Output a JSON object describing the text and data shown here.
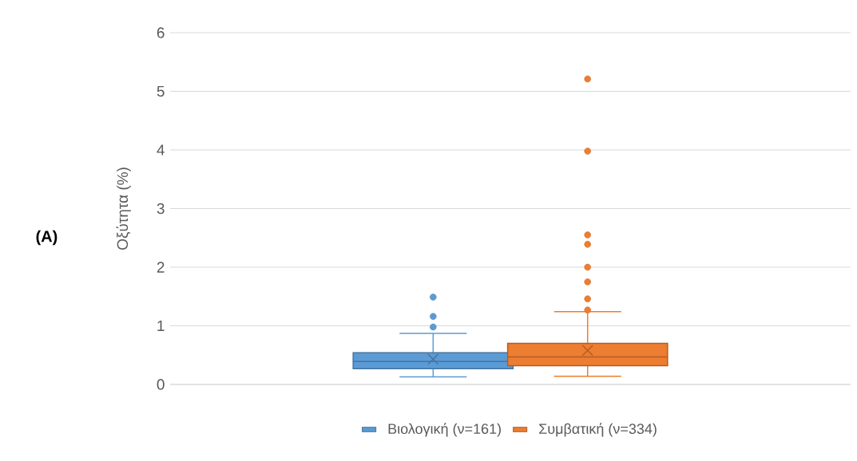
{
  "chart_data": {
    "type": "box",
    "ylabel": "Οξύτητα (%)",
    "categories": [
      null
    ],
    "series": [
      {
        "name": "Βιολογική (ν=161)",
        "color": "#5b9bd5",
        "boxes": [
          {
            "low": 0.13,
            "q1": 0.27,
            "median": 0.39,
            "q3": 0.54,
            "high": 0.87,
            "mean": 0.43,
            "outliers": [
              0.98,
              1.16,
              1.49
            ]
          }
        ]
      },
      {
        "name": "Συμβατική (ν=334)",
        "color": "#ed7d31",
        "boxes": [
          {
            "low": 0.14,
            "q1": 0.32,
            "median": 0.47,
            "q3": 0.7,
            "high": 1.24,
            "mean": 0.58,
            "outliers": [
              1.27,
              1.46,
              1.75,
              2.0,
              2.39,
              2.55,
              3.98,
              5.21
            ]
          }
        ]
      }
    ],
    "ylim": [
      0,
      6
    ],
    "yticks": [
      0,
      1,
      2,
      3,
      4,
      5,
      6
    ],
    "grid": "y",
    "legend": "bottom",
    "tick_labels": "y",
    "annotations": [
      "**(A)**"
    ]
  }
}
